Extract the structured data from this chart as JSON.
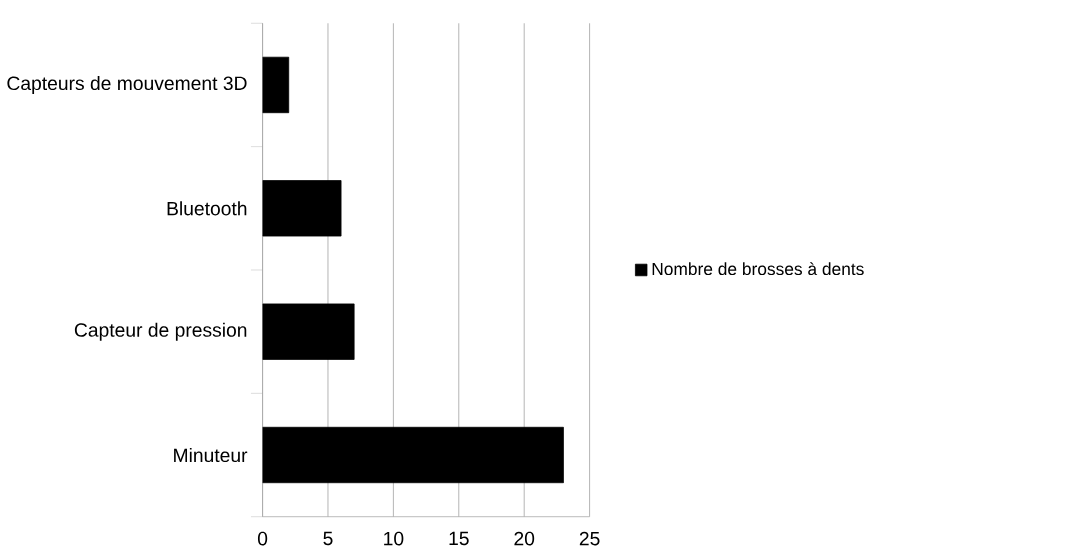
{
  "chart_data": {
    "type": "bar",
    "orientation": "horizontal",
    "categories": [
      "Capteurs de mouvement 3D",
      "Bluetooth",
      "Capteur de pression",
      "Minuteur"
    ],
    "series": [
      {
        "name": "Nombre de brosses à dents",
        "color": "#000000",
        "values": [
          2,
          6,
          7,
          23
        ]
      }
    ],
    "xlim": [
      0,
      25
    ],
    "xticks": [
      0,
      5,
      10,
      15,
      20,
      25
    ],
    "grid": "x",
    "legend": "right"
  }
}
